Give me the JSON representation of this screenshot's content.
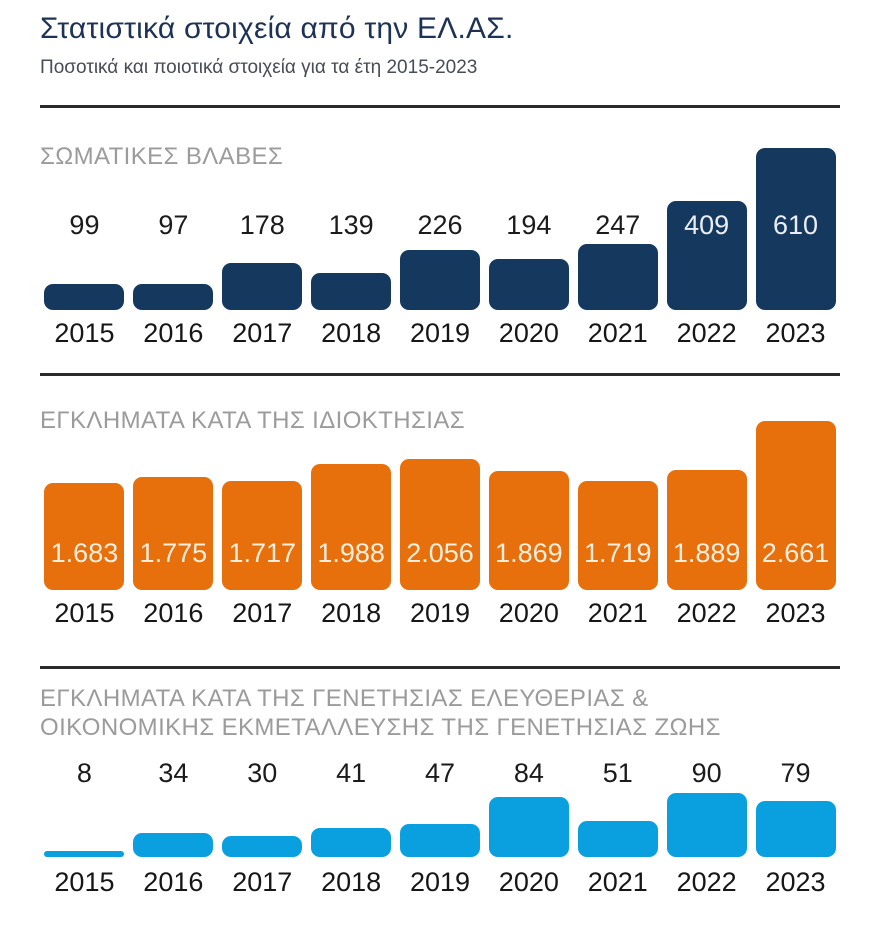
{
  "header": {
    "title": "Στατιστικά στοιχεία από την ΕΛ.ΑΣ.",
    "subtitle": "Ποσοτικά και ποιοτικά στοιχεία για τα έτη 2015-2023",
    "title_color": "#1d3254"
  },
  "chart_data": [
    {
      "type": "bar",
      "title": "ΣΩΜΑΤΙΚΕΣ ΒΛΑΒΕΣ",
      "categories": [
        "2015",
        "2016",
        "2017",
        "2018",
        "2019",
        "2020",
        "2021",
        "2022",
        "2023"
      ],
      "values": [
        99,
        97,
        178,
        139,
        226,
        194,
        247,
        409,
        610
      ],
      "display_values": [
        "99",
        "97",
        "178",
        "139",
        "226",
        "194",
        "247",
        "409",
        "610"
      ],
      "label_inside": [
        false,
        false,
        false,
        false,
        false,
        false,
        false,
        true,
        true
      ],
      "bar_color": "#15395e",
      "label_color_outside": "#1b1b1b",
      "label_color_inside": "#e9eef5",
      "xlabel": "",
      "ylabel": "",
      "ylim": [
        0,
        610
      ],
      "grid": false,
      "legend": "none"
    },
    {
      "type": "bar",
      "title": "ΕΓΚΛΗΜΑΤΑ ΚΑΤΑ ΤΗΣ ΙΔΙΟΚΤΗΣΙΑΣ",
      "categories": [
        "2015",
        "2016",
        "2017",
        "2018",
        "2019",
        "2020",
        "2021",
        "2022",
        "2023"
      ],
      "values": [
        1683,
        1775,
        1717,
        1988,
        2056,
        1869,
        1719,
        1889,
        2661
      ],
      "display_values": [
        "1.683",
        "1.775",
        "1.717",
        "1.988",
        "2.056",
        "1.869",
        "1.719",
        "1.889",
        "2.661"
      ],
      "label_inside": [
        true,
        true,
        true,
        true,
        true,
        true,
        true,
        true,
        true
      ],
      "bar_color": "#e7700d",
      "label_color_outside": "#1b1b1b",
      "label_color_inside": "#faeedd",
      "xlabel": "",
      "ylabel": "",
      "ylim": [
        0,
        2661
      ],
      "grid": false,
      "legend": "none"
    },
    {
      "type": "bar",
      "title": "ΕΓΚΛΗΜΑΤΑ ΚΑΤΑ ΤΗΣ ΓΕΝΕΤΗΣΙΑΣ ΕΛΕΥΘΕΡΙΑΣ &\nΟΙΚΟΝΟΜΙΚΗΣ ΕΚΜΕΤΑΛΛΕΥΣΗΣ ΤΗΣ ΓΕΝΕΤΗΣΙΑΣ ΖΩΗΣ",
      "categories": [
        "2015",
        "2016",
        "2017",
        "2018",
        "2019",
        "2020",
        "2021",
        "2022",
        "2023"
      ],
      "values": [
        8,
        34,
        30,
        41,
        47,
        84,
        51,
        90,
        79
      ],
      "display_values": [
        "8",
        "34",
        "30",
        "41",
        "47",
        "84",
        "51",
        "90",
        "79"
      ],
      "label_inside": [
        false,
        false,
        false,
        false,
        false,
        false,
        false,
        false,
        false
      ],
      "bar_color": "#0aa0e0",
      "label_color_outside": "#1b1b1b",
      "label_color_inside": "#ffffff",
      "xlabel": "",
      "ylabel": "",
      "ylim": [
        0,
        90
      ],
      "grid": false,
      "legend": "none"
    }
  ]
}
